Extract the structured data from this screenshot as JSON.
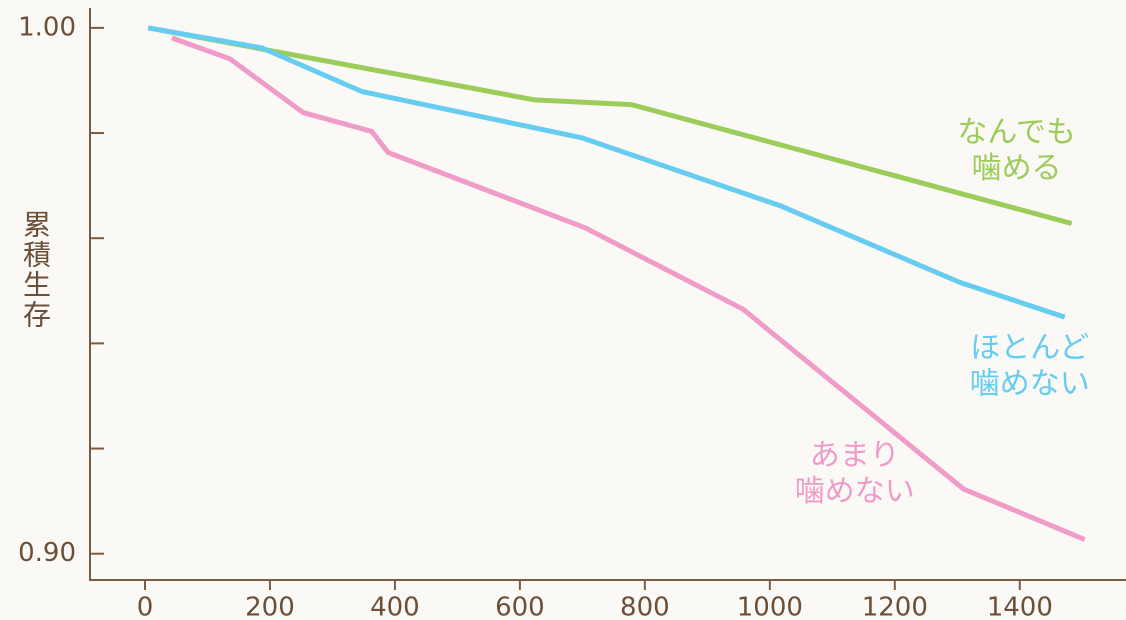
{
  "chart_data": {
    "type": "line",
    "y_label": "累積生存",
    "xlim": [
      -88,
      1570
    ],
    "ylim": [
      0.895,
      1.0034
    ],
    "xticks": [
      0,
      200,
      400,
      600,
      800,
      1000,
      1200,
      1400
    ],
    "yticks": [
      {
        "value": 0.9,
        "label": "0.90"
      },
      {
        "value": 1.0,
        "label": "1.00"
      }
    ],
    "minor_yticks": [
      0.92,
      0.94,
      0.96,
      0.98
    ],
    "series": [
      {
        "name_lines": [
          "なんでも",
          "噛める"
        ],
        "color": "#9ccc5a",
        "x": [
          24,
          624,
          779,
          1483
        ],
        "values": [
          0.9996,
          0.9863,
          0.9854,
          0.9628
        ]
      },
      {
        "name_lines": [
          "ほとんど",
          "噛めない"
        ],
        "color": "#66ccf0",
        "x": [
          5,
          187,
          347,
          699,
          1016,
          1304,
          1472
        ],
        "values": [
          1.0,
          0.9962,
          0.9879,
          0.9791,
          0.9662,
          0.9516,
          0.945
        ]
      },
      {
        "name_lines": [
          "あまり",
          "噛めない"
        ],
        "color": "#f09cc8",
        "x": [
          43,
          136,
          253,
          363,
          389,
          704,
          957,
          1310,
          1504
        ],
        "values": [
          0.9981,
          0.9941,
          0.9839,
          0.9803,
          0.9763,
          0.962,
          0.9465,
          0.9123,
          0.9027
        ]
      }
    ]
  }
}
